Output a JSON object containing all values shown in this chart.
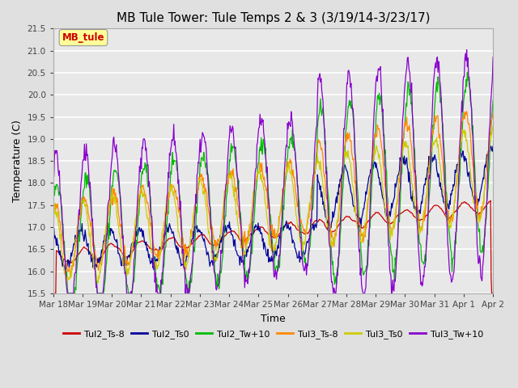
{
  "title": "MB Tule Tower: Tule Temps 2 & 3 (3/19/14-3/23/17)",
  "xlabel": "Time",
  "ylabel": "Temperature (C)",
  "ylim": [
    15.5,
    21.5
  ],
  "yticks": [
    15.5,
    16.0,
    16.5,
    17.0,
    17.5,
    18.0,
    18.5,
    19.0,
    19.5,
    20.0,
    20.5,
    21.0,
    21.5
  ],
  "background_color": "#e0e0e0",
  "plot_bg_color": "#e8e8e8",
  "grid_color": "white",
  "annotation_text": "MB_tule",
  "annotation_color": "#cc0000",
  "annotation_bg": "#ffff99",
  "series": [
    {
      "label": "Tul2_Ts-8",
      "color": "#cc0000"
    },
    {
      "label": "Tul2_Ts0",
      "color": "#000099"
    },
    {
      "label": "Tul2_Tw+10",
      "color": "#00bb00"
    },
    {
      "label": "Tul3_Ts-8",
      "color": "#ff8800"
    },
    {
      "label": "Tul3_Ts0",
      "color": "#cccc00"
    },
    {
      "label": "Tul3_Tw+10",
      "color": "#8800cc"
    }
  ],
  "xtick_labels": [
    "Mar 18",
    "Mar 19",
    "Mar 20",
    "Mar 21",
    "Mar 22",
    "Mar 23",
    "Mar 24",
    "Mar 25",
    "Mar 26",
    "Mar 27",
    "Mar 28",
    "Mar 29",
    "Mar 30",
    "Mar 31",
    "Apr 1",
    "Apr 2"
  ],
  "title_fontsize": 11,
  "axis_fontsize": 9,
  "tick_fontsize": 7.5,
  "legend_fontsize": 8
}
